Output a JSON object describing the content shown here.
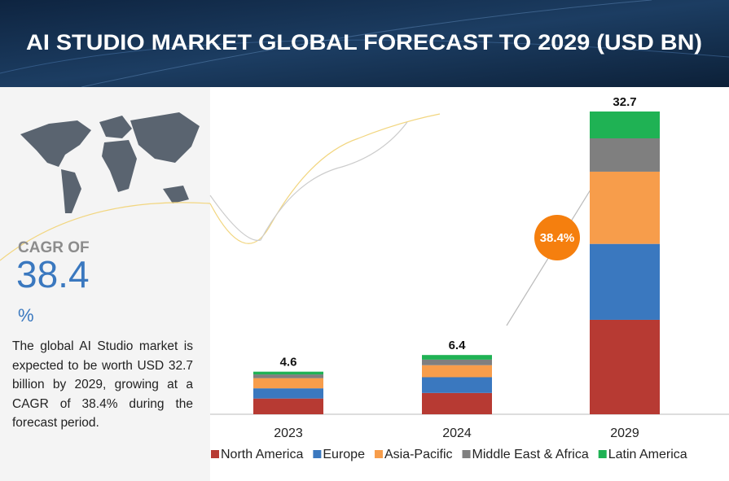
{
  "chart_data": {
    "type": "stacked_bar",
    "title": "AI STUDIO MARKET GLOBAL FORECAST TO 2029 (USD BN)",
    "categories": [
      "2023",
      "2024",
      "2029"
    ],
    "series": [
      {
        "name": "North America",
        "color": "#b73a33",
        "values": [
          1.7,
          2.3,
          10.2
        ]
      },
      {
        "name": "Europe",
        "color": "#3a78bf",
        "values": [
          1.1,
          1.7,
          8.2
        ]
      },
      {
        "name": "Asia-Pacific",
        "color": "#f79d4b",
        "values": [
          1.1,
          1.3,
          7.8
        ]
      },
      {
        "name": "Middle East & Africa",
        "color": "#7f7f7f",
        "values": [
          0.4,
          0.6,
          3.6
        ]
      },
      {
        "name": "Latin America",
        "color": "#1fb254",
        "values": [
          0.3,
          0.5,
          2.9
        ]
      }
    ],
    "totals": [
      4.6,
      6.4,
      32.7
    ],
    "annotation": "38.4%",
    "legend": "bottom"
  },
  "side_panel": {
    "cagr_label": "CAGR OF",
    "cagr_value": "38.4",
    "cagr_unit": "%",
    "description": "The global AI Studio market is expected to be worth USD 32.7 billion by 2029, growing at a CAGR of 38.4% during the forecast period."
  }
}
